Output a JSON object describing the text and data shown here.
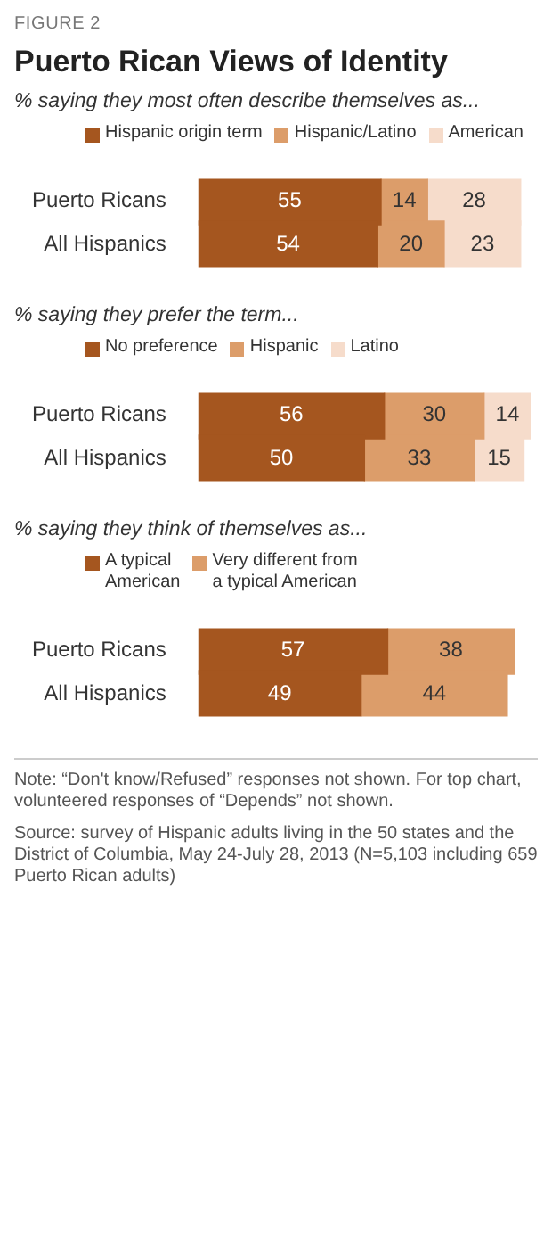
{
  "chart_data": [
    {
      "type": "bar",
      "orientation": "horizontal",
      "stacked": true,
      "title": "Puerto Rican Views of Identity",
      "subtitle": "% saying they most often describe themselves as...",
      "annotations": [
        "FIGURE 2"
      ],
      "categories": [
        "Puerto Ricans",
        "All Hispanics"
      ],
      "legend": "top",
      "data_labels": true,
      "series": [
        {
          "name": "Hispanic origin term",
          "color": "#a5561f",
          "values": [
            55,
            54
          ]
        },
        {
          "name": "Hispanic/Latino",
          "color": "#dc9d6a",
          "values": [
            14,
            20
          ]
        },
        {
          "name": "American",
          "color": "#f6dccb",
          "values": [
            28,
            23
          ]
        }
      ]
    },
    {
      "type": "bar",
      "orientation": "horizontal",
      "stacked": true,
      "subtitle": "% saying they prefer the term...",
      "categories": [
        "Puerto Ricans",
        "All Hispanics"
      ],
      "legend": "top",
      "data_labels": true,
      "series": [
        {
          "name": "No preference",
          "color": "#a5561f",
          "values": [
            56,
            50
          ]
        },
        {
          "name": "Hispanic",
          "color": "#dc9d6a",
          "values": [
            30,
            33
          ]
        },
        {
          "name": "Latino",
          "color": "#f6dccb",
          "values": [
            14,
            15
          ]
        }
      ]
    },
    {
      "type": "bar",
      "orientation": "horizontal",
      "stacked": true,
      "subtitle": "% saying they think of themselves as...",
      "categories": [
        "Puerto Ricans",
        "All Hispanics"
      ],
      "legend": "top",
      "data_labels": true,
      "annotations": [
        "Note: “Don't know/Refused” responses not shown. For top chart, volunteered responses of “Depends” not shown.",
        "Source: survey of Hispanic adults living in the 50 states and the District of Columbia, May 24-July 28, 2013 (N=5,103 including 659 Puerto Rican adults)"
      ],
      "series": [
        {
          "name": "A typical\nAmerican",
          "color": "#a5561f",
          "values": [
            57,
            49
          ]
        },
        {
          "name": "Very different from\na typical American",
          "color": "#dc9d6a",
          "values": [
            38,
            44
          ]
        }
      ]
    }
  ]
}
